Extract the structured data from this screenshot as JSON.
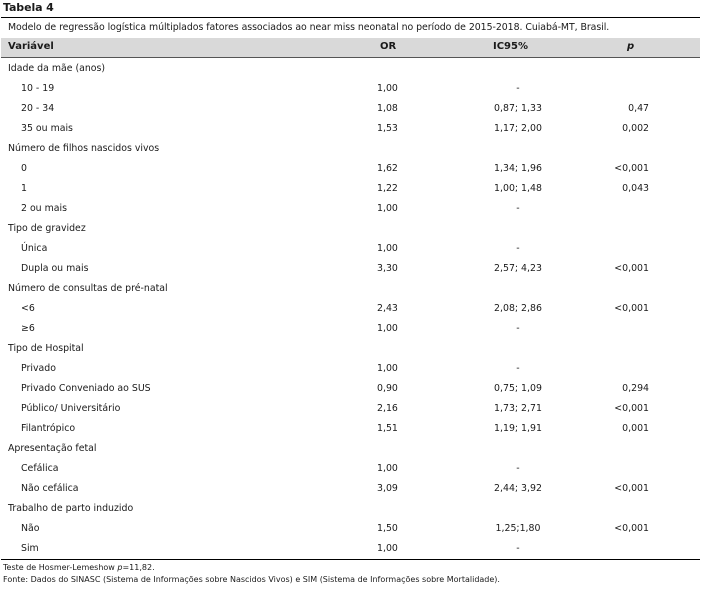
{
  "table_label": "Tabela 4",
  "caption": "Modelo de regressão logística múltiplados fatores associados ao near miss neonatal no período de 2015-2018. Cuiabá-MT, Brasil.",
  "header": {
    "variable": "Variável",
    "or": "OR",
    "ci": "IC95%",
    "p": "p"
  },
  "rows": [
    {
      "type": "group",
      "label": "Idade da mãe (anos)"
    },
    {
      "type": "sub",
      "label": "10 - 19",
      "or": "1,00",
      "ci": "-",
      "p": ""
    },
    {
      "type": "sub",
      "label": "20 - 34",
      "or": "1,08",
      "ci": "0,87; 1,33",
      "p": "0,47"
    },
    {
      "type": "sub",
      "label": "35 ou mais",
      "or": "1,53",
      "ci": "1,17; 2,00",
      "p": "0,002"
    },
    {
      "type": "group",
      "label": "Número de filhos nascidos vivos"
    },
    {
      "type": "sub",
      "label": "0",
      "or": "1,62",
      "ci": "1,34; 1,96",
      "p": "<0,001"
    },
    {
      "type": "sub",
      "label": "1",
      "or": "1,22",
      "ci": "1,00; 1,48",
      "p": "0,043"
    },
    {
      "type": "sub",
      "label": "2 ou mais",
      "or": "1,00",
      "ci": "-",
      "p": ""
    },
    {
      "type": "group",
      "label": "Tipo de gravidez"
    },
    {
      "type": "sub",
      "label": "Única",
      "or": "1,00",
      "ci": "-",
      "p": ""
    },
    {
      "type": "sub",
      "label": "Dupla ou mais",
      "or": "3,30",
      "ci": "2,57; 4,23",
      "p": "<0,001"
    },
    {
      "type": "group",
      "label": "Número de consultas de pré-natal"
    },
    {
      "type": "sub",
      "label": "<6",
      "or": "2,43",
      "ci": "2,08; 2,86",
      "p": "<0,001"
    },
    {
      "type": "sub",
      "label": "≥6",
      "or": "1,00",
      "ci": "-",
      "p": ""
    },
    {
      "type": "group",
      "label": "Tipo de Hospital"
    },
    {
      "type": "sub",
      "label": "Privado",
      "or": "1,00",
      "ci": "-",
      "p": ""
    },
    {
      "type": "sub",
      "label": "Privado Conveniado ao SUS",
      "or": "0,90",
      "ci": "0,75; 1,09",
      "p": "0,294"
    },
    {
      "type": "sub",
      "label": "Público/ Universitário",
      "or": "2,16",
      "ci": "1,73; 2,71",
      "p": "<0,001"
    },
    {
      "type": "sub",
      "label": "Filantrópico",
      "or": "1,51",
      "ci": "1,19; 1,91",
      "p": "0,001"
    },
    {
      "type": "group",
      "label": "Apresentação fetal"
    },
    {
      "type": "sub",
      "label": "Cefálica",
      "or": "1,00",
      "ci": "-",
      "p": ""
    },
    {
      "type": "sub",
      "label": "Não cefálica",
      "or": "3,09",
      "ci": "2,44; 3,92",
      "p": "<0,001"
    },
    {
      "type": "group",
      "label": "Trabalho de parto induzido"
    },
    {
      "type": "sub",
      "label": "Não",
      "or": "1,50",
      "ci": "1,25;1,80",
      "p": "<0,001"
    },
    {
      "type": "sub",
      "label": "Sim",
      "or": "1,00",
      "ci": "-",
      "p": ""
    }
  ],
  "notes": {
    "hosmer_prefix": "Teste de Hosmer-Lemeshow ",
    "hosmer_p": "p",
    "hosmer_value": "=11,82.",
    "source": "Fonte: Dados do SINASC (Sistema de Informações sobre Nascidos Vivos) e SIM (Sistema de Informações sobre Mortalidade)."
  }
}
